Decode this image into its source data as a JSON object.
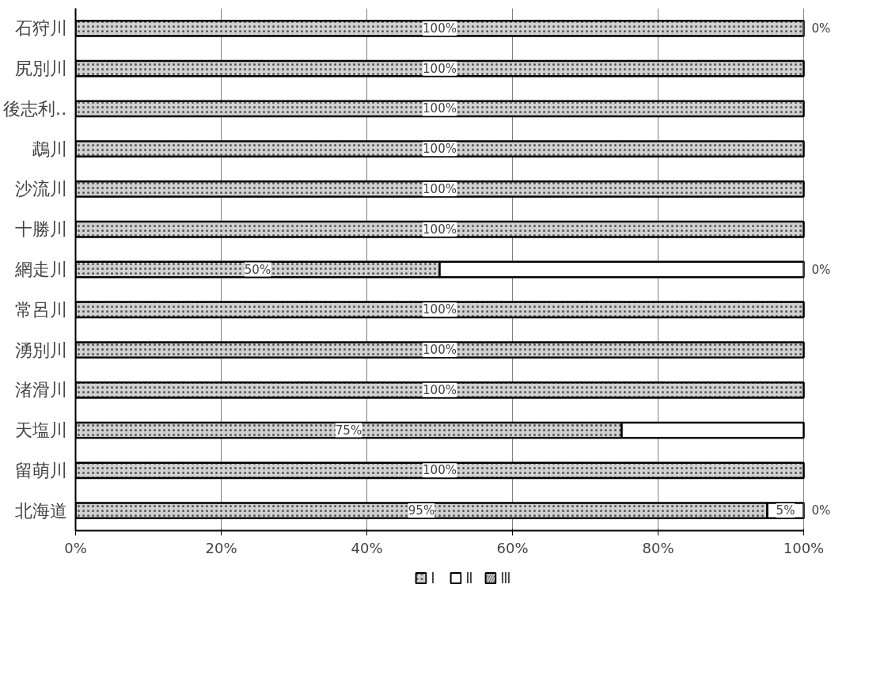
{
  "chart_data": {
    "type": "bar",
    "orientation": "horizontal",
    "stacked": true,
    "categories": [
      "石狩川",
      "尻別川",
      "後志利‥",
      "鵡川",
      "沙流川",
      "十勝川",
      "網走川",
      "常呂川",
      "湧別川",
      "渚滑川",
      "天塩川",
      "留萌川",
      "北海道"
    ],
    "series": [
      {
        "name": "Ⅰ",
        "color": "#d0d0d0",
        "values": [
          100,
          100,
          100,
          100,
          100,
          100,
          50,
          100,
          100,
          100,
          75,
          100,
          95
        ],
        "value_labels": [
          "100%",
          "100%",
          "100%",
          "100%",
          "100%",
          "100%",
          "50%",
          "100%",
          "100%",
          "100%",
          "75%",
          "100%",
          "95%"
        ]
      },
      {
        "name": "Ⅱ",
        "color": "#ffffff",
        "values": [
          null,
          null,
          null,
          null,
          null,
          null,
          50,
          null,
          null,
          null,
          25,
          null,
          5
        ],
        "value_labels": [
          null,
          null,
          null,
          null,
          null,
          null,
          null,
          null,
          null,
          null,
          null,
          null,
          "5%"
        ]
      },
      {
        "name": "Ⅲ",
        "color": "#404040",
        "values": [
          0,
          null,
          null,
          null,
          null,
          null,
          0,
          null,
          null,
          null,
          null,
          null,
          0
        ],
        "value_labels": [
          "0%",
          null,
          null,
          null,
          null,
          null,
          "0%",
          null,
          null,
          null,
          null,
          null,
          "0%"
        ]
      }
    ],
    "xlim": [
      0,
      100
    ],
    "xticks": [
      {
        "value": 0,
        "label": "0%"
      },
      {
        "value": 20,
        "label": "20%"
      },
      {
        "value": 40,
        "label": "40%"
      },
      {
        "value": 60,
        "label": "60%"
      },
      {
        "value": 80,
        "label": "80%"
      },
      {
        "value": 100,
        "label": "100%"
      }
    ],
    "grid": "x",
    "legend": "bottom"
  }
}
